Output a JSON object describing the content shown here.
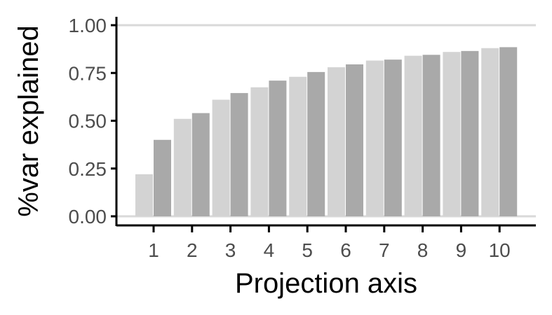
{
  "chart_data": {
    "type": "bar",
    "xlabel": "Projection axis",
    "ylabel": "%var explained",
    "categories": [
      "1",
      "2",
      "3",
      "4",
      "5",
      "6",
      "7",
      "8",
      "9",
      "10"
    ],
    "series": [
      {
        "color": "#d3d3d3",
        "values": [
          0.22,
          0.51,
          0.61,
          0.675,
          0.73,
          0.78,
          0.815,
          0.84,
          0.86,
          0.88
        ]
      },
      {
        "color": "#a9a9a9",
        "values": [
          0.4,
          0.54,
          0.645,
          0.71,
          0.755,
          0.795,
          0.82,
          0.845,
          0.865,
          0.885
        ]
      }
    ],
    "yticks": [
      "0.00",
      "0.25",
      "0.50",
      "0.75",
      "1.00"
    ],
    "ylim": [
      0,
      1.0
    ],
    "grid": "horizontal gridlines at 0 and 1 only",
    "legend": "none"
  }
}
